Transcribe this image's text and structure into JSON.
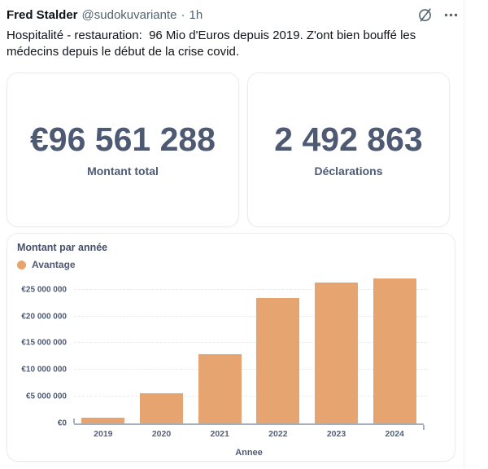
{
  "tweet": {
    "author": "Fred Stalder",
    "handle": "@sudokuvariante",
    "separator": "·",
    "timestamp": "1h",
    "body": "Hospitalité - restauration:  96 Mio d'Euros depuis 2019. Z'ont bien bouffé les médecins depuis le début de la crise covid."
  },
  "stats": {
    "cards": [
      {
        "value": "€96 561 288",
        "label": "Montant total"
      },
      {
        "value": "2 492 863",
        "label": "Déclarations"
      }
    ]
  },
  "chart": {
    "header": "Montant par année",
    "legend_label": "Avantage",
    "xlabel": "Annee"
  },
  "chart_data": {
    "type": "bar",
    "title": "Montant par année",
    "categories": [
      "2019",
      "2020",
      "2021",
      "2022",
      "2023",
      "2024"
    ],
    "series": [
      {
        "name": "Avantage",
        "values": [
          1100000,
          5600000,
          12900000,
          23400000,
          26400000,
          27161288
        ]
      }
    ],
    "xlabel": "Annee",
    "ylabel": "",
    "ylim": [
      0,
      28000000
    ],
    "yticks": [
      {
        "value": 0,
        "label": "€0"
      },
      {
        "value": 5000000,
        "label": "€5 000 000"
      },
      {
        "value": 10000000,
        "label": "€10 000 000"
      },
      {
        "value": 15000000,
        "label": "€15 000 000"
      },
      {
        "value": 20000000,
        "label": "€20 000 000"
      },
      {
        "value": 25000000,
        "label": "€25 000 000"
      }
    ],
    "grid": "horizontal-dashed",
    "legend_position": "top-left",
    "bar_color": "#e6a470"
  },
  "colors": {
    "accent_orange": "#e6a470",
    "stat_navy": "#4e5a73",
    "text_primary": "#0f1419",
    "text_secondary": "#536471",
    "card_border": "#e9ebee",
    "axis_line": "#a7aebc"
  }
}
